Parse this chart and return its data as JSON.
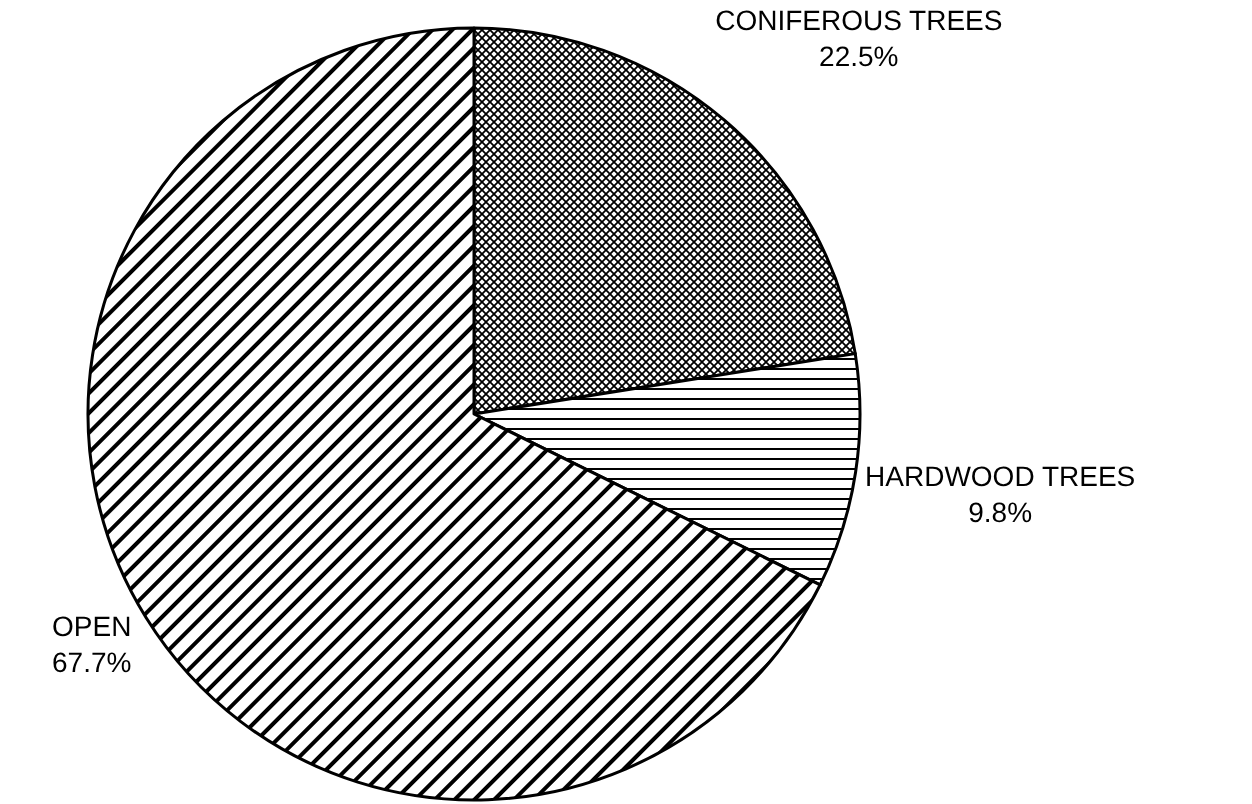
{
  "chart_data": {
    "type": "pie",
    "categories": [
      "CONIFEROUS TREES",
      "HARDWOOD TREES",
      "OPEN"
    ],
    "values": [
      22.5,
      9.8,
      67.7
    ],
    "colors": [
      "#000000",
      "#000000",
      "#000000"
    ],
    "value_labels": [
      "22.5%",
      "9.8%",
      "67.7%"
    ]
  }
}
